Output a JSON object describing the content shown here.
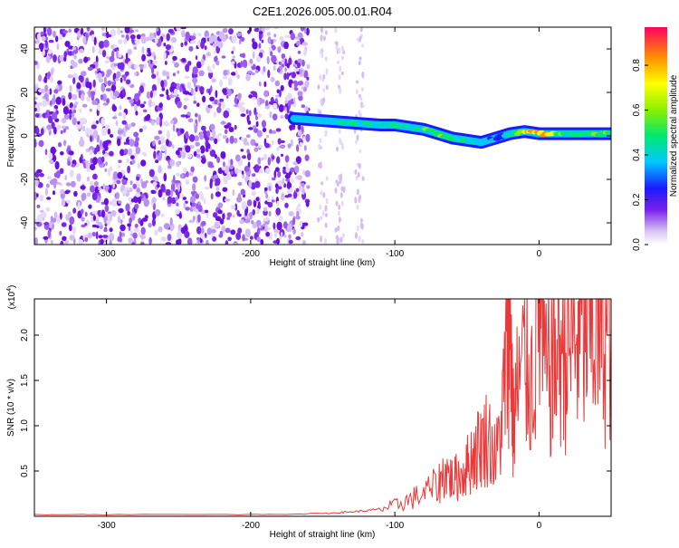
{
  "chart_data": [
    {
      "type": "heatmap",
      "title": "C2E1.2026.005.00.01.R04",
      "xlabel": "Height of straight line (km)",
      "ylabel": "Frequency (Hz)",
      "xlim": [
        -350,
        50
      ],
      "ylim": [
        -50,
        50
      ],
      "xticks": [
        -300,
        -200,
        -100,
        0
      ],
      "yticks": [
        -40,
        -20,
        0,
        20,
        40
      ],
      "colorbar": {
        "label": "Normalized spectral amplitude",
        "range": [
          0,
          0.97
        ],
        "ticks": [
          "0.0",
          "0.2",
          "0.4",
          "0.6",
          "0.8"
        ],
        "tick_values": [
          0.0,
          0.2,
          0.4,
          0.6,
          0.8
        ]
      },
      "ridge": {
        "x": [
          -170,
          -150,
          -130,
          -110,
          -100,
          -90,
          -80,
          -70,
          -60,
          -50,
          -40,
          -35,
          -30,
          -25,
          -20,
          -10,
          0,
          10,
          20,
          30,
          40,
          50
        ],
        "y": [
          8,
          7,
          6,
          5,
          5,
          4,
          3,
          1,
          -1,
          -2,
          -3,
          -2,
          -1,
          0,
          1,
          2,
          1,
          1,
          1,
          1,
          1,
          1
        ],
        "amplitude": [
          0.3,
          0.45,
          0.5,
          0.5,
          0.55,
          0.5,
          0.55,
          0.6,
          0.55,
          0.5,
          0.45,
          0.3,
          0.3,
          0.3,
          0.5,
          0.75,
          0.85,
          0.7,
          0.5,
          0.55,
          0.6,
          0.6
        ]
      },
      "noise_region_x": [
        -350,
        -160
      ]
    },
    {
      "type": "line",
      "xlabel": "Height of straight line (km)",
      "ylabel": "SNR (10 * v/v)",
      "y_multiplier": "(x10",
      "y_multiplier_exp": "4",
      "y_multiplier_close": ")",
      "xlim": [
        -350,
        50
      ],
      "ylim": [
        0,
        2.4
      ],
      "xticks": [
        -300,
        -200,
        -100,
        0
      ],
      "yticks": [
        0.5,
        1.0,
        1.5,
        2.0
      ],
      "ytick_labels": [
        "0.5",
        "1.0",
        "1.5",
        "2.0"
      ],
      "color": "#e83a3a",
      "series": [
        {
          "name": "SNR",
          "x": [
            -350,
            -300,
            -200,
            -150,
            -140,
            -130,
            -120,
            -110,
            -100,
            -90,
            -80,
            -70,
            -65,
            -60,
            -55,
            -50,
            -45,
            -40,
            -35,
            -30,
            -25,
            -22,
            -20,
            -18,
            -15,
            -10,
            -5,
            0,
            5,
            10,
            15,
            20,
            25,
            30,
            35,
            40,
            45,
            50
          ],
          "y": [
            0.02,
            0.02,
            0.02,
            0.03,
            0.04,
            0.05,
            0.06,
            0.08,
            0.12,
            0.18,
            0.25,
            0.35,
            0.5,
            0.4,
            0.45,
            0.55,
            0.7,
            0.8,
            0.9,
            0.6,
            1.2,
            1.9,
            2.3,
            1.0,
            1.4,
            1.7,
            1.5,
            2.3,
            1.5,
            1.7,
            1.9,
            1.85,
            1.95,
            2.0,
            2.05,
            2.1,
            2.05,
            2.08
          ]
        }
      ]
    }
  ]
}
